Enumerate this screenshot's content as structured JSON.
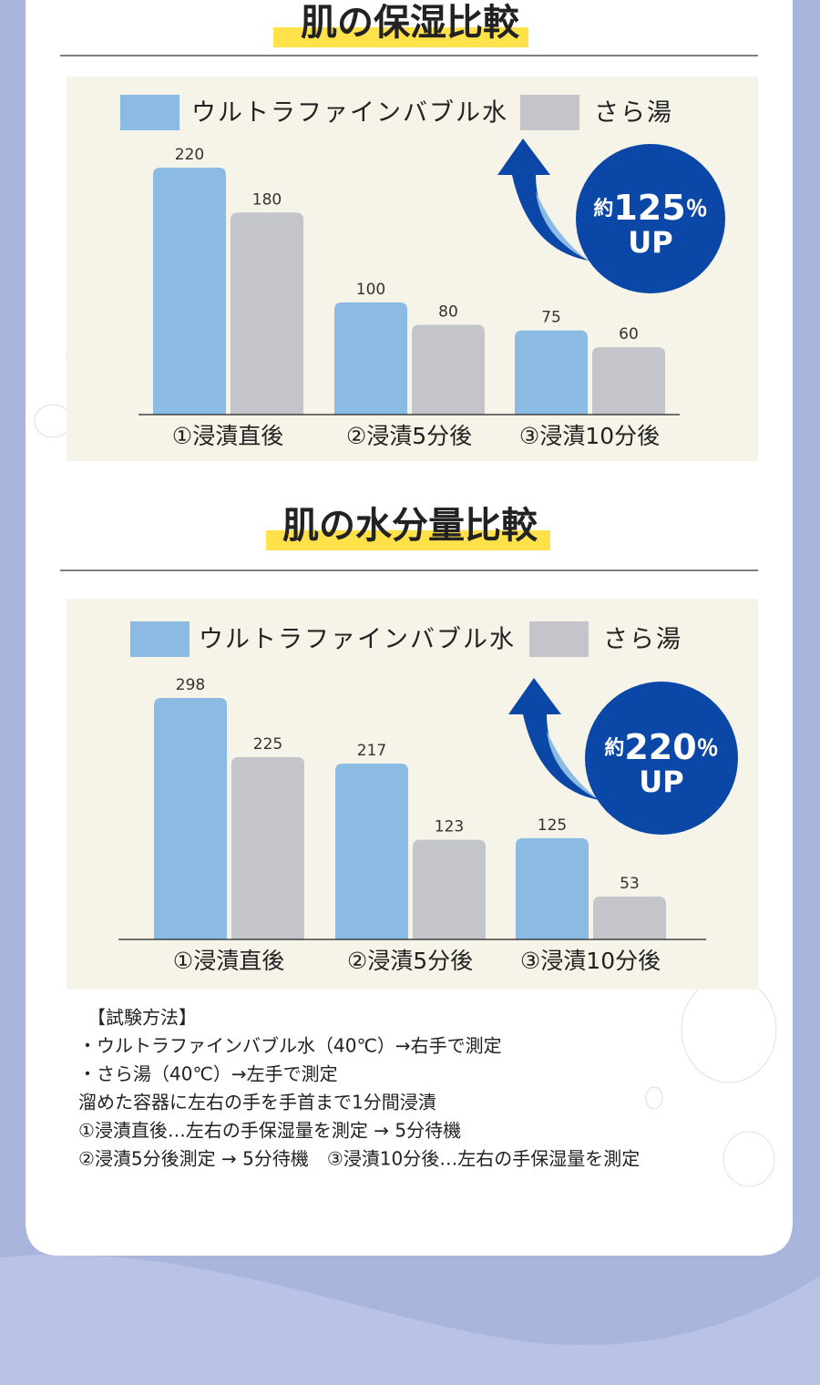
{
  "chart_data": [
    {
      "type": "bar",
      "title": "肌の保湿比較",
      "categories": [
        "①浸漬直後",
        "②浸漬5分後",
        "③浸漬10分後"
      ],
      "series": [
        {
          "name": "ウルトラファインバブル水",
          "color": "#8bbbe2",
          "values": [
            220,
            100,
            75
          ]
        },
        {
          "name": "さら湯",
          "color": "#c3c5cb",
          "values": [
            180,
            80,
            60
          ]
        }
      ],
      "badge": {
        "prefix": "約",
        "value": 125,
        "unit": "％",
        "label": "UP"
      }
    },
    {
      "type": "bar",
      "title": "肌の水分量比較",
      "categories": [
        "①浸漬直後",
        "②浸漬5分後",
        "③浸漬10分後"
      ],
      "series": [
        {
          "name": "ウルトラファインバブル水",
          "color": "#8bbbe2",
          "values": [
            298,
            217,
            125
          ]
        },
        {
          "name": "さら湯",
          "color": "#c3c5cb",
          "values": [
            225,
            123,
            53
          ]
        }
      ],
      "badge": {
        "prefix": "約",
        "value": 220,
        "unit": "％",
        "label": "UP"
      }
    }
  ],
  "method": {
    "heading": "【試験方法】",
    "lines": [
      "・ウルトラファインバブル水（40℃）→右手で測定",
      "・さら湯（40℃）→左手で測定",
      "溜めた容器に左右の手を手首まで1分間浸漬",
      "①浸漬直後…左右の手保湿量を測定 → 5分待機",
      "②浸漬5分後測定 → 5分待機　③浸漬10分後…左右の手保湿量を測定"
    ]
  }
}
